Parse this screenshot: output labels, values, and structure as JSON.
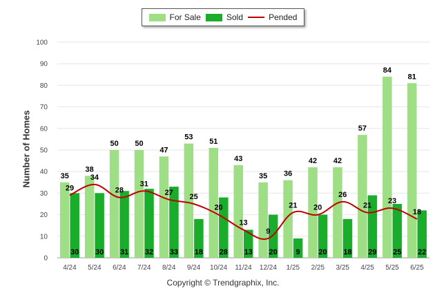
{
  "legend": {
    "for_sale": "For Sale",
    "sold": "Sold",
    "pended": "Pended"
  },
  "copyright": "Copyright © Trendgraphix, Inc.",
  "colors": {
    "for_sale": "#9ede84",
    "sold": "#1aad2c",
    "pended": "#c00000"
  },
  "chart_data": {
    "type": "bar",
    "ylabel": "Number of Homes",
    "ylim": [
      0,
      100
    ],
    "yticks": [
      0,
      10,
      20,
      30,
      40,
      50,
      60,
      70,
      80,
      90,
      100
    ],
    "grid": true,
    "legend_position": "top-center",
    "categories": [
      "4/24",
      "5/24",
      "6/24",
      "7/24",
      "8/24",
      "9/24",
      "10/24",
      "11/24",
      "12/24",
      "1/25",
      "2/25",
      "3/25",
      "4/25",
      "5/25",
      "6/25"
    ],
    "series": [
      {
        "name": "For Sale",
        "type": "bar",
        "values": [
          35,
          38,
          50,
          50,
          47,
          53,
          51,
          43,
          35,
          36,
          42,
          42,
          57,
          84,
          81
        ]
      },
      {
        "name": "Sold",
        "type": "bar",
        "values": [
          30,
          30,
          31,
          32,
          33,
          18,
          28,
          13,
          20,
          9,
          20,
          18,
          29,
          25,
          22
        ]
      },
      {
        "name": "Pended",
        "type": "line",
        "values": [
          29,
          34,
          28,
          31,
          27,
          25,
          20,
          13,
          9,
          21,
          20,
          26,
          21,
          23,
          18
        ]
      }
    ]
  }
}
